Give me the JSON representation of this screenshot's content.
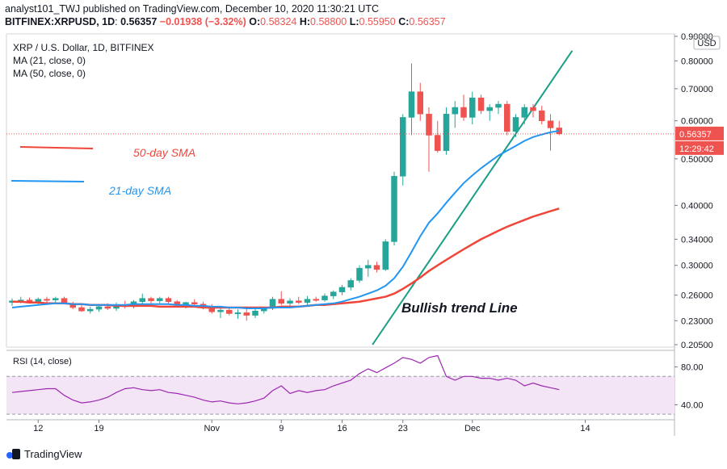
{
  "header": {
    "line1": "analyst101_TWJ published on TradingView.com, December 10, 2020 11:30:21 UTC",
    "symbol": "BITFINEX:XRPUSD, 1D",
    "price": "0.56357",
    "change": "−0.01938 (−3.32%)",
    "o_label": "O:",
    "o": "0.58324",
    "h_label": "H:",
    "h": "0.58800",
    "l_label": "L:",
    "l": "0.55950",
    "c_label": "C:",
    "c": "0.56357"
  },
  "info": {
    "title": "XRP / U.S. Dollar, 1D, BITFINEX",
    "ma21": "MA (21, close, 0)",
    "ma50": "MA (50, close, 0)"
  },
  "currency": "USD",
  "last_price_label": "0.56357",
  "countdown_label": "12:29:42",
  "annotations": {
    "sma50": "50-day SMA",
    "sma21": "21-day SMA",
    "trend": "Bullish trend Line"
  },
  "colors": {
    "up": "#26a69a",
    "down": "#ef5350",
    "ma21": "#2196f3",
    "ma50": "#f0463a",
    "trend": "#1a9e87",
    "rsi": "#9c27b0",
    "rsi_band": "#f3e5f5"
  },
  "branding": "TradingView",
  "chart_data": [
    {
      "type": "candlestick",
      "y_scale": "log",
      "yticks": [
        "0.90000",
        "0.80000",
        "0.70000",
        "0.60000",
        "0.50000",
        "0.40000",
        "0.34000",
        "0.30000",
        "0.26000",
        "0.23000",
        "0.20500"
      ],
      "xticks": [
        {
          "label": "12",
          "i": 3
        },
        {
          "label": "19",
          "i": 10
        },
        {
          "label": "Nov",
          "i": 23
        },
        {
          "label": "9",
          "i": 31
        },
        {
          "label": "16",
          "i": 38
        },
        {
          "label": "23",
          "i": 45
        },
        {
          "label": "Dec",
          "i": 53
        },
        {
          "label": "14",
          "i": 66
        }
      ],
      "ohlc": [
        [
          0.251,
          0.256,
          0.247,
          0.253
        ],
        [
          0.253,
          0.258,
          0.25,
          0.254
        ],
        [
          0.254,
          0.257,
          0.25,
          0.252
        ],
        [
          0.252,
          0.257,
          0.249,
          0.255
        ],
        [
          0.255,
          0.258,
          0.251,
          0.254
        ],
        [
          0.254,
          0.258,
          0.25,
          0.256
        ],
        [
          0.256,
          0.258,
          0.249,
          0.25
        ],
        [
          0.25,
          0.252,
          0.243,
          0.245
        ],
        [
          0.245,
          0.249,
          0.24,
          0.241
        ],
        [
          0.241,
          0.246,
          0.238,
          0.243
        ],
        [
          0.243,
          0.248,
          0.24,
          0.246
        ],
        [
          0.246,
          0.25,
          0.242,
          0.244
        ],
        [
          0.244,
          0.251,
          0.241,
          0.248
        ],
        [
          0.248,
          0.253,
          0.244,
          0.246
        ],
        [
          0.246,
          0.254,
          0.244,
          0.252
        ],
        [
          0.252,
          0.262,
          0.249,
          0.256
        ],
        [
          0.256,
          0.258,
          0.25,
          0.253
        ],
        [
          0.253,
          0.258,
          0.25,
          0.256
        ],
        [
          0.256,
          0.258,
          0.25,
          0.252
        ],
        [
          0.252,
          0.254,
          0.246,
          0.248
        ],
        [
          0.248,
          0.252,
          0.244,
          0.251
        ],
        [
          0.251,
          0.255,
          0.246,
          0.249
        ],
        [
          0.249,
          0.252,
          0.243,
          0.245
        ],
        [
          0.245,
          0.249,
          0.238,
          0.24
        ],
        [
          0.24,
          0.245,
          0.233,
          0.242
        ],
        [
          0.242,
          0.246,
          0.236,
          0.238
        ],
        [
          0.238,
          0.243,
          0.232,
          0.239
        ],
        [
          0.239,
          0.243,
          0.23,
          0.236
        ],
        [
          0.236,
          0.244,
          0.233,
          0.241
        ],
        [
          0.241,
          0.246,
          0.238,
          0.244
        ],
        [
          0.244,
          0.258,
          0.242,
          0.255
        ],
        [
          0.255,
          0.265,
          0.248,
          0.25
        ],
        [
          0.25,
          0.256,
          0.247,
          0.253
        ],
        [
          0.253,
          0.258,
          0.249,
          0.251
        ],
        [
          0.251,
          0.259,
          0.248,
          0.255
        ],
        [
          0.255,
          0.258,
          0.252,
          0.254
        ],
        [
          0.254,
          0.262,
          0.252,
          0.259
        ],
        [
          0.259,
          0.266,
          0.255,
          0.264
        ],
        [
          0.264,
          0.273,
          0.26,
          0.27
        ],
        [
          0.27,
          0.282,
          0.266,
          0.279
        ],
        [
          0.279,
          0.3,
          0.276,
          0.296
        ],
        [
          0.296,
          0.308,
          0.284,
          0.3
        ],
        [
          0.3,
          0.305,
          0.29,
          0.294
        ],
        [
          0.294,
          0.34,
          0.292,
          0.336
        ],
        [
          0.336,
          0.47,
          0.33,
          0.46
        ],
        [
          0.46,
          0.62,
          0.44,
          0.61
        ],
        [
          0.61,
          0.79,
          0.56,
          0.69
        ],
        [
          0.69,
          0.72,
          0.6,
          0.62
        ],
        [
          0.62,
          0.64,
          0.47,
          0.56
        ],
        [
          0.56,
          0.6,
          0.515,
          0.52
        ],
        [
          0.52,
          0.64,
          0.51,
          0.62
        ],
        [
          0.62,
          0.66,
          0.58,
          0.64
        ],
        [
          0.64,
          0.68,
          0.6,
          0.61
        ],
        [
          0.61,
          0.69,
          0.59,
          0.67
        ],
        [
          0.67,
          0.68,
          0.62,
          0.63
        ],
        [
          0.63,
          0.65,
          0.6,
          0.64
        ],
        [
          0.64,
          0.66,
          0.62,
          0.65
        ],
        [
          0.65,
          0.66,
          0.56,
          0.57
        ],
        [
          0.57,
          0.62,
          0.555,
          0.61
        ],
        [
          0.61,
          0.65,
          0.59,
          0.64
        ],
        [
          0.64,
          0.65,
          0.61,
          0.63
        ],
        [
          0.63,
          0.645,
          0.59,
          0.6
        ],
        [
          0.6,
          0.62,
          0.52,
          0.58
        ],
        [
          0.58,
          0.6,
          0.56,
          0.5636
        ]
      ],
      "ma21": [
        0.245,
        0.246,
        0.247,
        0.248,
        0.249,
        0.25,
        0.25,
        0.249,
        0.249,
        0.248,
        0.248,
        0.248,
        0.248,
        0.248,
        0.249,
        0.249,
        0.249,
        0.249,
        0.249,
        0.248,
        0.248,
        0.247,
        0.247,
        0.246,
        0.246,
        0.245,
        0.245,
        0.244,
        0.244,
        0.244,
        0.245,
        0.245,
        0.245,
        0.246,
        0.247,
        0.248,
        0.249,
        0.25,
        0.252,
        0.255,
        0.258,
        0.262,
        0.266,
        0.272,
        0.282,
        0.298,
        0.32,
        0.345,
        0.368,
        0.385,
        0.405,
        0.425,
        0.445,
        0.462,
        0.478,
        0.493,
        0.508,
        0.52,
        0.532,
        0.545,
        0.555,
        0.562,
        0.568,
        0.572
      ],
      "ma50": [
        0.252,
        0.252,
        0.251,
        0.251,
        0.25,
        0.25,
        0.25,
        0.249,
        0.249,
        0.248,
        0.248,
        0.248,
        0.247,
        0.247,
        0.247,
        0.247,
        0.247,
        0.246,
        0.246,
        0.246,
        0.246,
        0.246,
        0.245,
        0.245,
        0.245,
        0.245,
        0.245,
        0.245,
        0.245,
        0.245,
        0.245,
        0.246,
        0.246,
        0.246,
        0.247,
        0.248,
        0.248,
        0.249,
        0.25,
        0.251,
        0.252,
        0.254,
        0.256,
        0.258,
        0.262,
        0.268,
        0.275,
        0.283,
        0.292,
        0.3,
        0.308,
        0.316,
        0.324,
        0.332,
        0.34,
        0.347,
        0.354,
        0.361,
        0.367,
        0.373,
        0.379,
        0.384,
        0.389,
        0.394
      ],
      "trend_line": [
        [
          41.5,
          0.205
        ],
        [
          64.5,
          0.84
        ]
      ]
    },
    {
      "type": "line",
      "title": "RSI (14, close)",
      "ylim": [
        25,
        95
      ],
      "yticks": [
        "80.00",
        "40.00"
      ],
      "band": [
        30,
        70
      ],
      "values": [
        53,
        54,
        55,
        56,
        57,
        57,
        50,
        45,
        42,
        43,
        45,
        48,
        53,
        57,
        58,
        56,
        55,
        56,
        53,
        52,
        50,
        48,
        45,
        43,
        44,
        42,
        41,
        42,
        44,
        47,
        55,
        60,
        52,
        55,
        53,
        55,
        56,
        60,
        63,
        66,
        73,
        78,
        74,
        79,
        84,
        90,
        88,
        84,
        90,
        92,
        70,
        66,
        70,
        70,
        68,
        68,
        66,
        68,
        66,
        60,
        63,
        60,
        58,
        56
      ]
    }
  ]
}
